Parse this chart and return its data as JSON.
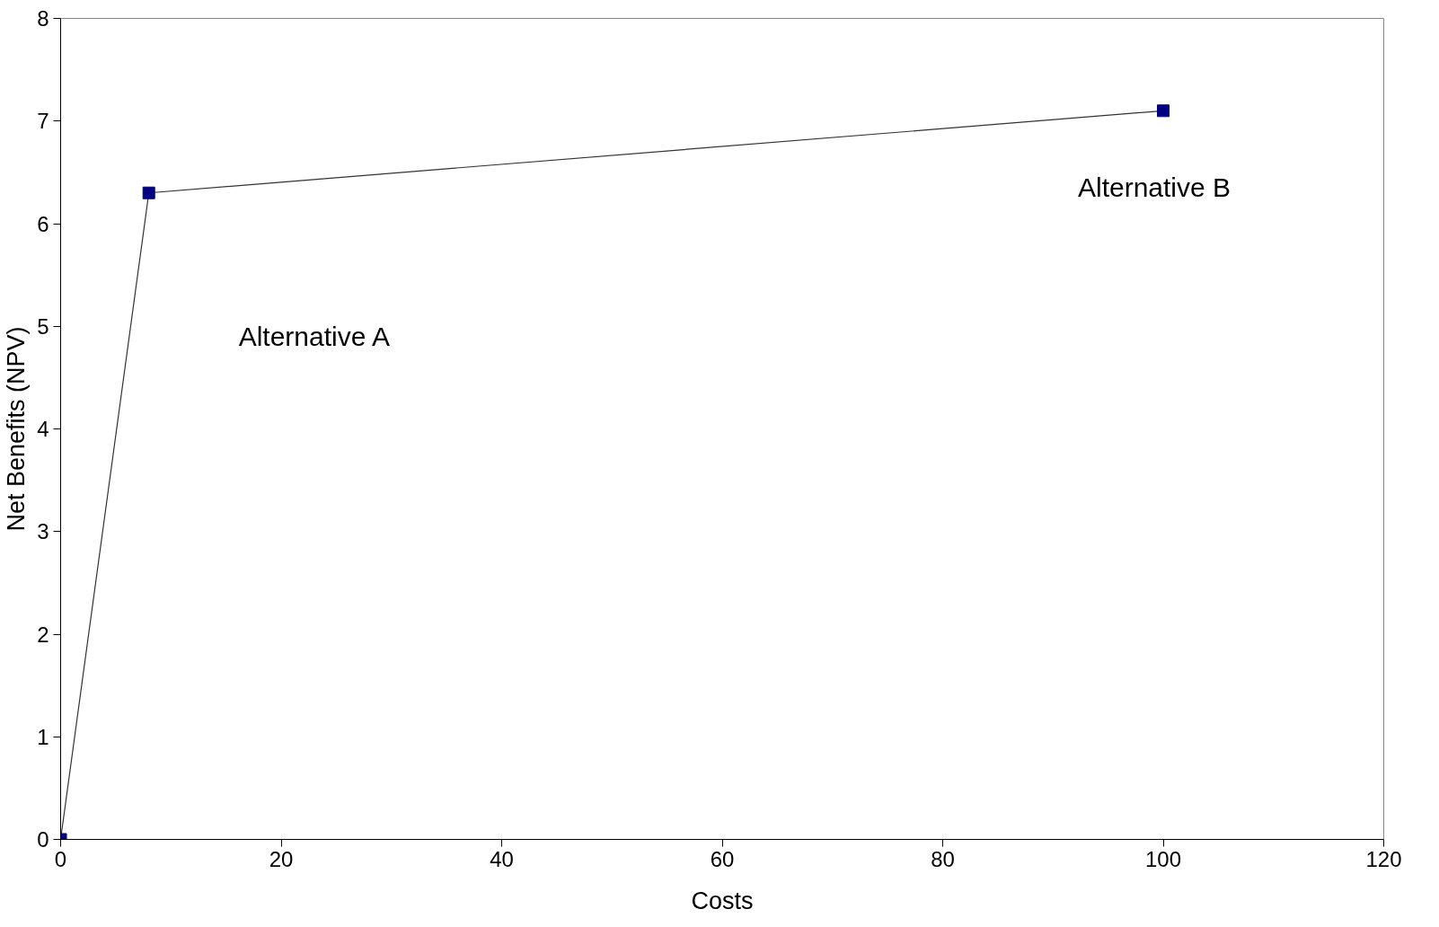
{
  "chart_data": {
    "type": "line",
    "xlabel": "Costs",
    "ylabel": "Net Benefits (NPV)",
    "x": [
      0,
      8,
      100
    ],
    "series": [
      {
        "color": "#000080",
        "values": [
          0,
          6.3,
          7.1
        ]
      }
    ],
    "xlim": [
      0,
      120
    ],
    "xticks": [
      0,
      20,
      40,
      60,
      80,
      100,
      120
    ],
    "ylim": [
      0,
      8
    ],
    "yticks": [
      0,
      1,
      2,
      3,
      4,
      5,
      6,
      7,
      8
    ],
    "marker": "square",
    "line_style": "solid",
    "grid": false,
    "annotations": [
      "Alternative A",
      "Alternative B"
    ]
  }
}
